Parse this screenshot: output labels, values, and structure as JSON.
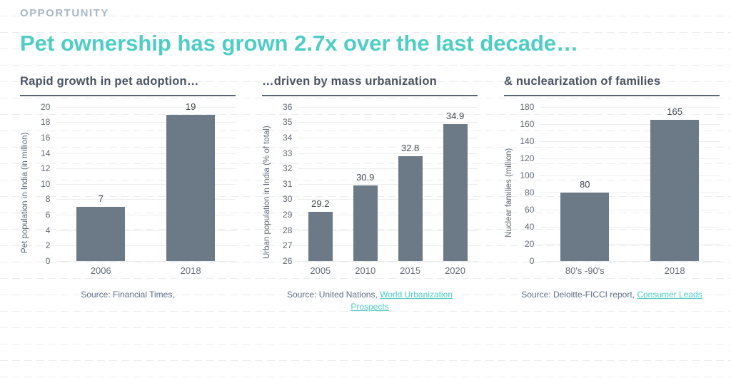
{
  "header": {
    "eyebrow": "OPPORTUNITY",
    "title": "Pet ownership has grown 2.7x over the last decade…"
  },
  "colors": {
    "accent_teal": "#4ecdc4",
    "eyebrow_gray": "#a9b6c6",
    "bar_fill": "#6c7a88",
    "panel_title_slate": "#4a5462",
    "axis_text_gray": "#5d6876",
    "source_text": "#5e6f88"
  },
  "chart_data": [
    {
      "type": "bar",
      "title": "Rapid growth in pet adoption…",
      "categories": [
        "2006",
        "2018"
      ],
      "values": [
        7,
        19
      ],
      "xlabel": "",
      "ylabel": "Pet population in India (in million)",
      "ylim": [
        0,
        20
      ],
      "ytick_step": 2,
      "grid": true,
      "legend": "none",
      "source_text": "Source: Financial Times,",
      "source_link": ""
    },
    {
      "type": "bar",
      "title": "…driven by mass urbanization",
      "categories": [
        "2005",
        "2010",
        "2015",
        "2020"
      ],
      "values": [
        29.2,
        30.9,
        32.8,
        34.9
      ],
      "xlabel": "",
      "ylabel": "Urban population in India (% of total)",
      "ylim": [
        26,
        36
      ],
      "ytick_step": 1,
      "grid": true,
      "legend": "none",
      "source_text": "Source: United Nations, ",
      "source_link": "World Urbanization Prospects"
    },
    {
      "type": "bar",
      "title": "& nuclearization of families",
      "categories": [
        "80's -90's",
        "2018"
      ],
      "values": [
        80,
        165
      ],
      "xlabel": "",
      "ylabel": "Nuclear families (million)",
      "ylim": [
        0,
        180
      ],
      "ytick_step": 20,
      "grid": true,
      "legend": "none",
      "source_text": "Source: Deloitte-FICCI report, ",
      "source_link": "Consumer Leads"
    }
  ]
}
